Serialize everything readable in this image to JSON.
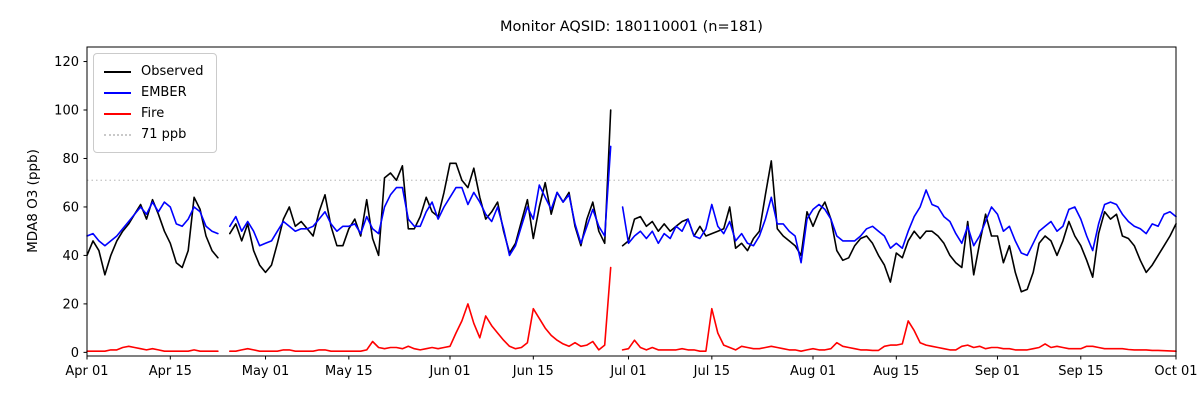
{
  "chart_data": {
    "type": "line",
    "title": "Monitor AQSID: 180110001 (n=181)",
    "ylabel": "MDA8 O3 (ppb)",
    "xlabel": "",
    "grid": false,
    "legend_position": "upper-left",
    "x_start_date": "Apr 01",
    "x_end_date": "Oct 01",
    "total_days": 183,
    "x_tick_labels": [
      "Apr 01",
      "Apr 15",
      "May 01",
      "May 15",
      "Jun 01",
      "Jun 15",
      "Jul 01",
      "Jul 15",
      "Aug 01",
      "Aug 15",
      "Sep 01",
      "Sep 15",
      "Oct 01"
    ],
    "x_tick_days": [
      0,
      14,
      30,
      44,
      61,
      75,
      91,
      105,
      122,
      136,
      153,
      167,
      183
    ],
    "y_ticks": [
      0,
      20,
      40,
      60,
      80,
      100,
      120
    ],
    "ylim": [
      -1.5,
      126
    ],
    "missing_days": [
      "Apr 24",
      "Jun 29"
    ],
    "reference_line": {
      "label": "71 ppb",
      "value": 71,
      "color": "#c9c9c9",
      "style": "dotted"
    },
    "series": [
      {
        "name": "Observed",
        "color": "#000000",
        "values": [
          40,
          46,
          42,
          32,
          40,
          46,
          50,
          53,
          57,
          61,
          55,
          63,
          57,
          50,
          45,
          37,
          35,
          42,
          64,
          59,
          48,
          42,
          39,
          null,
          49,
          53,
          46,
          53,
          42,
          36,
          33,
          36,
          45,
          55,
          60,
          52,
          54,
          51,
          48,
          58,
          65,
          52,
          44,
          44,
          51,
          55,
          48,
          63,
          47,
          40,
          72,
          74,
          71,
          77,
          51,
          51,
          56,
          64,
          58,
          56,
          66,
          78,
          78,
          71,
          68,
          76,
          64,
          55,
          58,
          62,
          50,
          41,
          45,
          54,
          63,
          47,
          60,
          70,
          57,
          66,
          62,
          66,
          52,
          44,
          55,
          62,
          50,
          45,
          100,
          null,
          44,
          46,
          55,
          56,
          52,
          54,
          50,
          53,
          50,
          52,
          54,
          55,
          48,
          52,
          48,
          49,
          50,
          51,
          60,
          43,
          45,
          42,
          47,
          50,
          65,
          79,
          51,
          48,
          46,
          44,
          40,
          58,
          52,
          58,
          62,
          55,
          42,
          38,
          39,
          44,
          47,
          48,
          45,
          40,
          36,
          29,
          41,
          39,
          46,
          50,
          47,
          50,
          50,
          48,
          45,
          40,
          37,
          35,
          54,
          32,
          45,
          57,
          48,
          48,
          37,
          44,
          33,
          25,
          26,
          33,
          45,
          48,
          46,
          40,
          46,
          54,
          48,
          44,
          38,
          31,
          49,
          58,
          55,
          57,
          48,
          47,
          44,
          38,
          33,
          36,
          40,
          44,
          48,
          53
        ]
      },
      {
        "name": "EMBER",
        "color": "#0000ff",
        "values": [
          48,
          49,
          46,
          44,
          46,
          48,
          51,
          54,
          57,
          60,
          57,
          62,
          58,
          62,
          60,
          53,
          52,
          55,
          60,
          58,
          52,
          50,
          49,
          null,
          52,
          56,
          50,
          54,
          50,
          44,
          45,
          46,
          50,
          54,
          52,
          50,
          51,
          51,
          52,
          55,
          58,
          53,
          50,
          52,
          52,
          53,
          49,
          56,
          51,
          49,
          60,
          65,
          68,
          68,
          55,
          52,
          52,
          58,
          62,
          55,
          60,
          64,
          68,
          68,
          61,
          66,
          62,
          57,
          54,
          60,
          51,
          40,
          44,
          52,
          60,
          55,
          69,
          64,
          59,
          66,
          62,
          65,
          53,
          45,
          52,
          59,
          52,
          48,
          85,
          null,
          60,
          45,
          48,
          50,
          47,
          50,
          45,
          49,
          47,
          52,
          50,
          55,
          48,
          47,
          51,
          61,
          52,
          49,
          54,
          46,
          49,
          45,
          44,
          48,
          55,
          64,
          53,
          53,
          50,
          48,
          37,
          55,
          59,
          61,
          59,
          55,
          48,
          46,
          46,
          46,
          48,
          51,
          52,
          50,
          48,
          43,
          45,
          43,
          50,
          56,
          60,
          67,
          61,
          60,
          56,
          54,
          49,
          45,
          52,
          44,
          48,
          54,
          60,
          57,
          50,
          52,
          46,
          41,
          40,
          45,
          50,
          52,
          54,
          50,
          52,
          59,
          60,
          55,
          48,
          42,
          53,
          61,
          62,
          61,
          57,
          54,
          52,
          51,
          49,
          53,
          52,
          57,
          58,
          56
        ]
      },
      {
        "name": "Fire",
        "color": "#ff0000",
        "values": [
          0.5,
          0.5,
          0.5,
          0.5,
          1,
          1,
          2,
          2.5,
          2,
          1.5,
          1,
          1.5,
          1,
          0.5,
          0.5,
          0.5,
          0.5,
          0.5,
          1,
          0.5,
          0.5,
          0.5,
          0.5,
          null,
          0.5,
          0.5,
          1,
          1.5,
          1,
          0.5,
          0.5,
          0.5,
          0.5,
          1,
          1,
          0.5,
          0.5,
          0.5,
          0.5,
          1,
          1,
          0.5,
          0.5,
          0.5,
          0.5,
          0.5,
          0.5,
          1,
          4.5,
          2,
          1.5,
          2,
          2,
          1.5,
          2.5,
          1.5,
          1,
          1.5,
          2,
          1.5,
          2,
          2.5,
          8,
          13,
          20,
          12,
          6,
          15,
          11,
          8,
          5,
          2.5,
          1.5,
          2,
          4,
          18,
          14,
          10,
          7,
          5,
          3.5,
          2.5,
          4,
          2.5,
          3,
          4.5,
          1,
          3,
          35,
          null,
          1,
          1.5,
          5,
          2,
          1,
          2,
          1,
          1,
          1,
          1,
          1.5,
          1,
          1,
          0.5,
          0.5,
          18,
          8,
          3,
          2,
          1,
          2.5,
          2,
          1.5,
          1.5,
          2,
          2.5,
          2,
          1.5,
          1,
          1,
          0.5,
          1,
          1.5,
          1,
          1,
          1.5,
          4,
          2.5,
          2,
          1.5,
          1,
          1,
          0.8,
          0.8,
          2.5,
          3,
          3,
          3.5,
          13,
          9,
          4,
          3,
          2.5,
          2,
          1.5,
          1,
          1,
          2.5,
          3,
          2,
          2.5,
          1.5,
          2,
          2,
          1.5,
          1.5,
          1,
          1,
          1,
          1.5,
          2,
          3.5,
          2,
          2.5,
          2,
          1.5,
          1.5,
          1.5,
          2.5,
          2.5,
          2,
          1.5,
          1.5,
          1.5,
          1.5,
          1.2,
          1,
          1,
          1,
          0.8,
          0.8,
          0.7,
          0.6,
          0.5
        ]
      }
    ],
    "legend_items": [
      {
        "label": "Observed",
        "color": "#000000",
        "style": "solid"
      },
      {
        "label": "EMBER",
        "color": "#0000ff",
        "style": "solid"
      },
      {
        "label": "Fire",
        "color": "#ff0000",
        "style": "solid"
      },
      {
        "label": "71 ppb",
        "color": "#c9c9c9",
        "style": "dotted"
      }
    ]
  }
}
